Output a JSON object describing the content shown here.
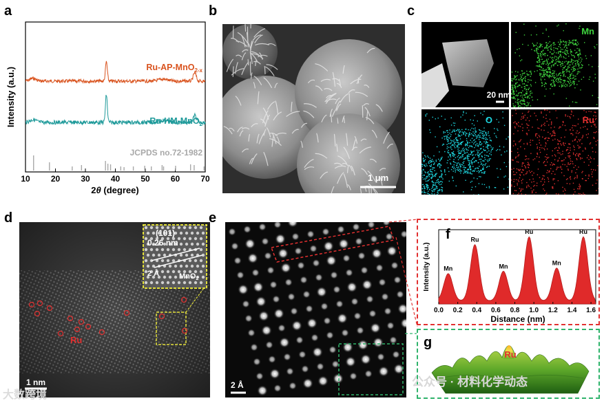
{
  "panels": {
    "a": "a",
    "b": "b",
    "c": "c",
    "d": "d",
    "e": "e",
    "f": "f",
    "g": "g"
  },
  "xrd": {
    "ylabel": "Intensity (a.u.)",
    "xlabel_prefix": "2",
    "xlabel_theta": "θ",
    "xlabel_suffix": " (degree)",
    "xticks": [
      "10",
      "20",
      "30",
      "40",
      "50",
      "60",
      "70"
    ],
    "series": [
      {
        "name_main": "Ru-AP-MnO",
        "name_sub": "2-x",
        "color": "#d9531e"
      },
      {
        "name_main": "Ru-HM-MnO",
        "name_sub": "2",
        "color": "#1f9a9a"
      }
    ],
    "reference": "JCPDS no.72-1982"
  },
  "sem": {
    "scale": "1 μm"
  },
  "eds": {
    "scale": "20 nm",
    "maps": [
      "Mn",
      "O",
      "Ru"
    ],
    "colors": {
      "Mn": "#3ed23e",
      "O": "#1ed7e0",
      "Ru": "#e23030"
    }
  },
  "hrtem": {
    "inset_plane": "(101)",
    "inset_d": "0.26 nm",
    "inset_scale": "2 Å",
    "inset_phase": "MnO",
    "inset_phase_sub": "2",
    "ru": "Ru",
    "scale": "1 nm"
  },
  "haadf": {
    "scale": "2 Å"
  },
  "profile": {
    "ylabel": "Intensity (a.u.)",
    "xlabel": "Distance (nm)",
    "xticks": [
      "0.0",
      "0.2",
      "0.4",
      "0.6",
      "0.8",
      "1.0",
      "1.2",
      "1.4",
      "1.6"
    ],
    "peaks": [
      {
        "x": 0.1,
        "label": "Mn"
      },
      {
        "x": 0.38,
        "label": "Ru"
      },
      {
        "x": 0.68,
        "label": "Mn"
      },
      {
        "x": 0.95,
        "label": "Ru"
      },
      {
        "x": 1.24,
        "label": "Mn"
      },
      {
        "x": 1.52,
        "label": "Ru"
      }
    ]
  },
  "surface": {
    "label": "Ru"
  },
  "watermark": {
    "left": "大数跨境",
    "right": "公众号 · 材料化学动态"
  }
}
